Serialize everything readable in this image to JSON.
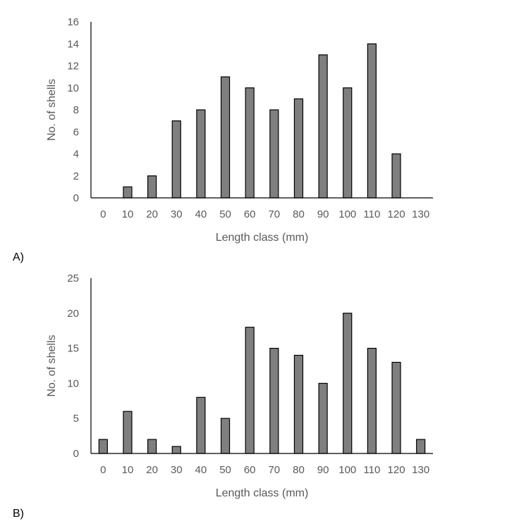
{
  "chart_data": [
    {
      "type": "bar",
      "panel_label": "A)",
      "categories": [
        "0",
        "10",
        "20",
        "30",
        "40",
        "50",
        "60",
        "70",
        "80",
        "90",
        "100",
        "110",
        "120",
        "130"
      ],
      "values": [
        0,
        1,
        2,
        7,
        8,
        11,
        10,
        8,
        9,
        13,
        10,
        14,
        4,
        0
      ],
      "xlabel": "Length class (mm)",
      "ylabel": "No. of shells",
      "ylim": [
        0,
        16
      ],
      "yticks": [
        0,
        2,
        4,
        6,
        8,
        10,
        12,
        14,
        16
      ],
      "grid": false,
      "bar_color": "#7f7f7f",
      "bar_outline": "#000000"
    },
    {
      "type": "bar",
      "panel_label": "B)",
      "categories": [
        "0",
        "10",
        "20",
        "30",
        "40",
        "50",
        "60",
        "70",
        "80",
        "90",
        "100",
        "110",
        "120",
        "130"
      ],
      "values": [
        2,
        6,
        2,
        1,
        8,
        5,
        18,
        15,
        14,
        10,
        20,
        15,
        13,
        2
      ],
      "xlabel": "Length class (mm)",
      "ylabel": "No. of shells",
      "ylim": [
        0,
        25
      ],
      "yticks": [
        0,
        5,
        10,
        15,
        20,
        25
      ],
      "grid": false,
      "bar_color": "#7f7f7f",
      "bar_outline": "#000000"
    }
  ]
}
